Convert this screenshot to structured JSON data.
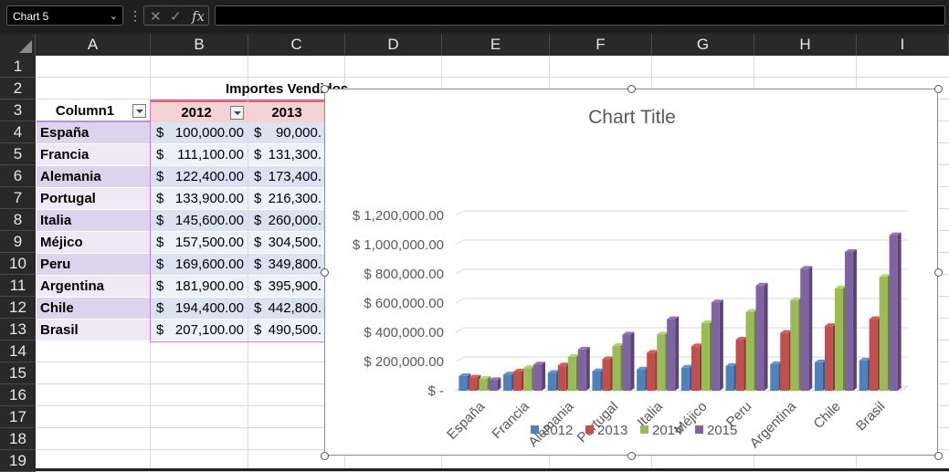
{
  "namebox": {
    "value": "Chart 5"
  },
  "formula_bar": {
    "fx_label": "fx",
    "cancel_icon": "x-icon",
    "enter_icon": "check-icon"
  },
  "columns": [
    "A",
    "B",
    "C",
    "D",
    "E",
    "F",
    "G",
    "H",
    "I"
  ],
  "rows": [
    "1",
    "2",
    "3",
    "4",
    "5",
    "6",
    "7",
    "8",
    "9",
    "10",
    "11",
    "12",
    "13",
    "14",
    "15",
    "16",
    "17",
    "18",
    "19"
  ],
  "sheet": {
    "heading": "Importes Vendidos",
    "table_headers": {
      "col1": "Column1",
      "y2012": "2012",
      "y2013": "2013"
    },
    "countries": [
      "España",
      "Francia",
      "Alemania",
      "Portugal",
      "Italia",
      "Méjico",
      "Peru",
      "Argentina",
      "Chile",
      "Brasil"
    ],
    "currency": "$",
    "values_2012": [
      "100,000.00",
      "111,100.00",
      "122,400.00",
      "133,900.00",
      "145,600.00",
      "157,500.00",
      "169,600.00",
      "181,900.00",
      "194,400.00",
      "207,100.00"
    ],
    "values_2013": [
      "90,000.",
      "131,300.",
      "173,400.",
      "216,300.",
      "260,000.",
      "304,500.",
      "349,800.",
      "395,900.",
      "442,800.",
      "490,500."
    ]
  },
  "chart": {
    "title": "Chart Title",
    "colors": {
      "2012": "#4f81bd",
      "2013": "#c0504d",
      "2014": "#9bbb59",
      "2015": "#8064a2"
    }
  },
  "chart_data": {
    "type": "bar",
    "title": "Chart Title",
    "categories": [
      "España",
      "Francia",
      "Alemania",
      "Portugal",
      "Italia",
      "Méjico",
      "Peru",
      "Argentina",
      "Chile",
      "Brasil"
    ],
    "series": [
      {
        "name": "2012",
        "values": [
          100000,
          111100,
          122400,
          133900,
          145600,
          157500,
          169600,
          181900,
          194400,
          207100
        ]
      },
      {
        "name": "2013",
        "values": [
          90000,
          131300,
          173400,
          216300,
          260000,
          304500,
          349800,
          395900,
          442800,
          490500
        ]
      },
      {
        "name": "2014",
        "values": [
          81000,
          155200,
          231400,
          307200,
          385000,
          463000,
          540000,
          620000,
          700000,
          780000
        ]
      },
      {
        "name": "2015",
        "values": [
          72900,
          180000,
          282000,
          384000,
          490000,
          605000,
          720000,
          835000,
          950000,
          1065000
        ]
      }
    ],
    "ylim": [
      0,
      1200000
    ],
    "yticks": [
      "$ -",
      "$ 200,000.00",
      "$ 400,000.00",
      "$ 600,000.00",
      "$ 800,000.00",
      "$ 1,000,000.00",
      "$ 1,200,000.00"
    ],
    "grid": true,
    "legend_position": "bottom"
  }
}
